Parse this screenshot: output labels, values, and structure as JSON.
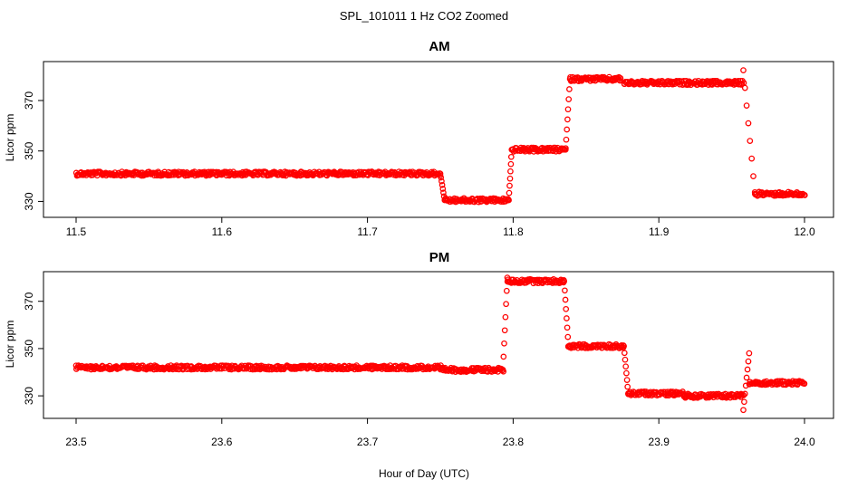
{
  "colors": {
    "points": "#ff0000",
    "axes": "#000000",
    "background": "#ffffff"
  },
  "main_title": "SPL_101011  1 Hz CO2 Zoomed",
  "x_axis_label": "Hour of Day (UTC)",
  "chart_data": [
    {
      "type": "scatter",
      "title": "AM",
      "xlabel": "Hour of Day (UTC)",
      "ylabel": "Licor ppm",
      "xlim": [
        11.5,
        12.0
      ],
      "ylim": [
        328,
        384
      ],
      "xticks": [
        "11.5",
        "11.6",
        "11.7",
        "11.8",
        "11.9",
        "12.0"
      ],
      "yticks": [
        "330",
        "350",
        "370"
      ],
      "marker": "open-circle",
      "series": [
        {
          "segments": [
            {
              "x": [
                11.5,
                11.75
              ],
              "y": 341
            },
            {
              "x": [
                11.753,
                11.797
              ],
              "y": 330.5
            },
            {
              "x": [
                11.799,
                11.836
              ],
              "y": 350.5
            },
            {
              "x": [
                11.839,
                11.874
              ],
              "y": 378.5
            },
            {
              "x": [
                11.876,
                11.958
              ],
              "y": 377
            },
            {
              "x": [
                11.966,
                12.0
              ],
              "y": 333
            }
          ],
          "transitions": [
            {
              "x": [
                11.75,
                11.753
              ],
              "y": [
                341,
                330.5
              ]
            },
            {
              "x": [
                11.797,
                11.799
              ],
              "y": [
                330.5,
                350.5
              ]
            },
            {
              "x": [
                11.836,
                11.839
              ],
              "y": [
                350.5,
                378.5
              ]
            },
            {
              "x": [
                11.958,
                11.966
              ],
              "y": [
                382,
                333
              ]
            }
          ]
        }
      ]
    },
    {
      "type": "scatter",
      "title": "PM",
      "xlabel": "Hour of Day (UTC)",
      "ylabel": "Licor ppm",
      "xlim": [
        23.5,
        24.0
      ],
      "ylim": [
        322,
        381
      ],
      "xticks": [
        "23.5",
        "23.6",
        "23.7",
        "23.8",
        "23.9",
        "24.0"
      ],
      "yticks": [
        "330",
        "350",
        "370"
      ],
      "marker": "open-circle",
      "series": [
        {
          "segments": [
            {
              "x": [
                23.5,
                23.75
              ],
              "y": 342
            },
            {
              "x": [
                23.75,
                23.793
              ],
              "y": 341
            },
            {
              "x": [
                23.796,
                23.835
              ],
              "y": 378.5
            },
            {
              "x": [
                23.838,
                23.876
              ],
              "y": 351
            },
            {
              "x": [
                23.879,
                23.917
              ],
              "y": 331
            },
            {
              "x": [
                23.917,
                23.958
              ],
              "y": 330
            },
            {
              "x": [
                23.962,
                24.0
              ],
              "y": 335.5
            }
          ],
          "transitions": [
            {
              "x": [
                23.793,
                23.796
              ],
              "y": [
                341,
                380
              ]
            },
            {
              "x": [
                23.835,
                23.838
              ],
              "y": [
                378.5,
                351
              ]
            },
            {
              "x": [
                23.876,
                23.879
              ],
              "y": [
                351,
                331
              ]
            },
            {
              "x": [
                23.958,
                23.962
              ],
              "y": [
                324,
                348
              ]
            }
          ]
        }
      ]
    }
  ]
}
